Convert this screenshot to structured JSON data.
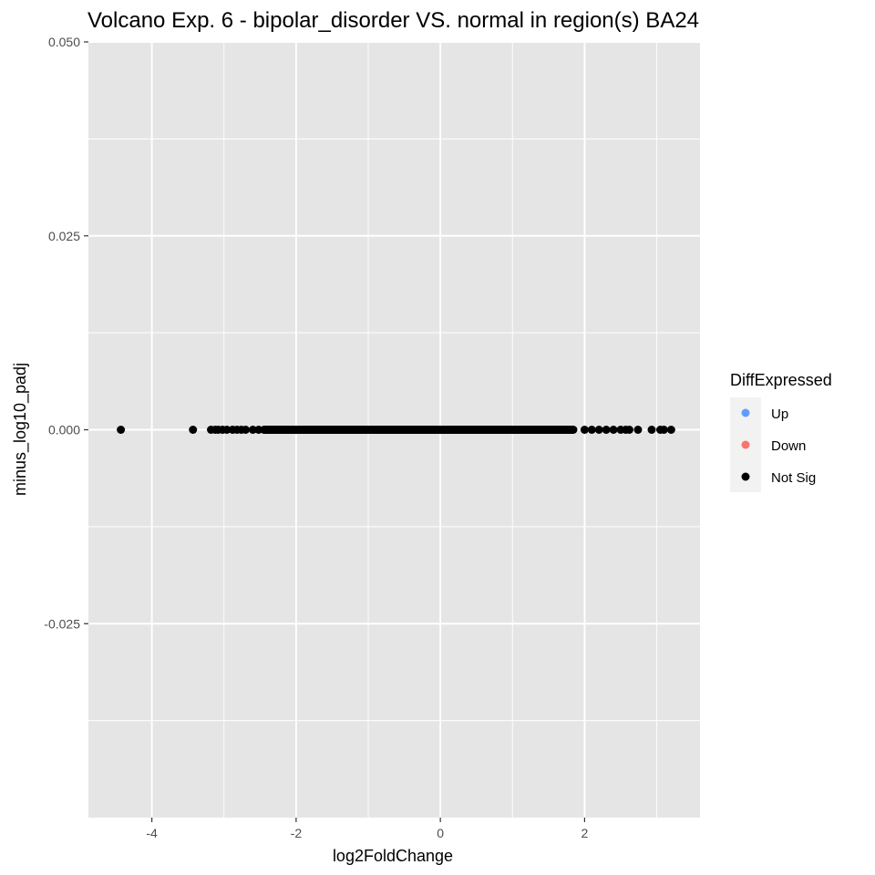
{
  "chart_data": {
    "type": "scatter",
    "title": "Volcano Exp. 6 - bipolar_disorder VS. normal in region(s) BA24",
    "xlabel": "log2FoldChange",
    "ylabel": "minus_log10_padj",
    "xlim": [
      -4.88,
      3.6
    ],
    "ylim": [
      -0.05,
      0.05
    ],
    "x_ticks": [
      -4,
      -2,
      0,
      2
    ],
    "x_tick_labels": [
      "-4",
      "-2",
      "0",
      "2"
    ],
    "y_ticks": [
      -0.025,
      0.0,
      0.025,
      0.05
    ],
    "y_tick_labels": [
      "-0.025",
      "0.000",
      "0.025",
      "0.050"
    ],
    "grid": true,
    "panel_background": "#e5e5e5",
    "grid_color": "#ffffff",
    "legend": {
      "title": "DiffExpressed",
      "position": "right",
      "entries": [
        {
          "label": "Up",
          "color": "#619cff"
        },
        {
          "label": "Down",
          "color": "#f8766d"
        },
        {
          "label": "Not Sig",
          "color": "#000000"
        }
      ]
    },
    "series": [
      {
        "name": "Not Sig",
        "color": "#000000",
        "points": [
          {
            "x": -4.43,
            "y": 0
          },
          {
            "x": -3.43,
            "y": 0
          },
          {
            "x": -3.18,
            "y": 0
          },
          {
            "x": -3.12,
            "y": 0
          },
          {
            "x": -3.08,
            "y": 0
          },
          {
            "x": -3.02,
            "y": 0
          },
          {
            "x": -2.96,
            "y": 0
          },
          {
            "x": -2.88,
            "y": 0
          },
          {
            "x": -2.82,
            "y": 0
          },
          {
            "x": -2.76,
            "y": 0
          },
          {
            "x": -2.7,
            "y": 0
          },
          {
            "x": -2.6,
            "y": 0
          },
          {
            "x": -2.52,
            "y": 0
          },
          {
            "x": -2.44,
            "y": 0
          },
          {
            "x": -2.36,
            "y": 0
          },
          {
            "x": -2.28,
            "y": 0
          },
          {
            "x": -2.2,
            "y": 0
          },
          {
            "x": -2.1,
            "y": 0
          },
          {
            "x": -2.0,
            "y": 0
          },
          {
            "x": -1.8,
            "y": 0
          },
          {
            "x": -1.5,
            "y": 0
          },
          {
            "x": -1.0,
            "y": 0
          },
          {
            "x": -0.5,
            "y": 0
          },
          {
            "x": 0.0,
            "y": 0
          },
          {
            "x": 0.5,
            "y": 0
          },
          {
            "x": 1.0,
            "y": 0
          },
          {
            "x": 1.5,
            "y": 0
          },
          {
            "x": 1.8,
            "y": 0
          },
          {
            "x": 2.0,
            "y": 0
          },
          {
            "x": 2.1,
            "y": 0
          },
          {
            "x": 2.2,
            "y": 0
          },
          {
            "x": 2.3,
            "y": 0
          },
          {
            "x": 2.4,
            "y": 0
          },
          {
            "x": 2.5,
            "y": 0
          },
          {
            "x": 2.57,
            "y": 0
          },
          {
            "x": 2.62,
            "y": 0
          },
          {
            "x": 2.74,
            "y": 0
          },
          {
            "x": 2.93,
            "y": 0
          },
          {
            "x": 3.05,
            "y": 0
          },
          {
            "x": 3.1,
            "y": 0
          },
          {
            "x": 3.2,
            "y": 0
          }
        ],
        "dense_range": [
          -2.5,
          1.9
        ]
      }
    ]
  }
}
